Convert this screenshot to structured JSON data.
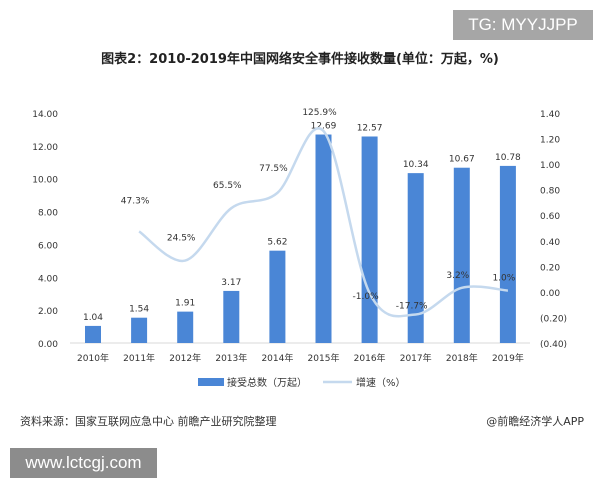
{
  "watermark_top": "TG: MYYJJPP",
  "watermark_bottom": "www.lctcgj.com",
  "source": "资料来源：国家互联网应急中心 前瞻产业研究院整理",
  "credit": "@前瞻经济学人APP",
  "chart_data": {
    "type": "bar+line",
    "title": "图表2：2010-2019年中国网络安全事件接收数量(单位：万起，%)",
    "categories": [
      "2010年",
      "2011年",
      "2012年",
      "2013年",
      "2014年",
      "2015年",
      "2016年",
      "2017年",
      "2018年",
      "2019年"
    ],
    "series": [
      {
        "name": "接受总数（万起）",
        "type": "bar",
        "axis": "left",
        "color": "#4a86d6",
        "values": [
          1.04,
          1.54,
          1.91,
          3.17,
          5.62,
          12.69,
          12.57,
          10.34,
          10.67,
          10.78
        ],
        "labels": [
          "1.04",
          "1.54",
          "1.91",
          "3.17",
          "5.62",
          "12.69",
          "12.57",
          "10.34",
          "10.67",
          "10.78"
        ]
      },
      {
        "name": "增速（%）",
        "type": "line",
        "axis": "right",
        "color": "#c5d9ee",
        "values": [
          null,
          0.473,
          0.245,
          0.655,
          0.775,
          1.259,
          -0.01,
          -0.177,
          0.032,
          0.01
        ],
        "labels": [
          null,
          "47.3%",
          "24.5%",
          "65.5%",
          "77.5%",
          "125.9%",
          "-1.0%",
          "-17.7%",
          "3.2%",
          "1.0%"
        ]
      }
    ],
    "ylim_left": [
      0,
      14
    ],
    "yticks_left": [
      "0.00",
      "2.00",
      "4.00",
      "6.00",
      "8.00",
      "10.00",
      "12.00",
      "14.00"
    ],
    "ylim_right": [
      -0.4,
      1.4
    ],
    "yticks_right": [
      "(0.40)",
      "(0.20)",
      "0.00",
      "0.20",
      "0.40",
      "0.60",
      "0.80",
      "1.00",
      "1.20",
      "1.40"
    ],
    "grid": false,
    "legend": "bottom"
  }
}
